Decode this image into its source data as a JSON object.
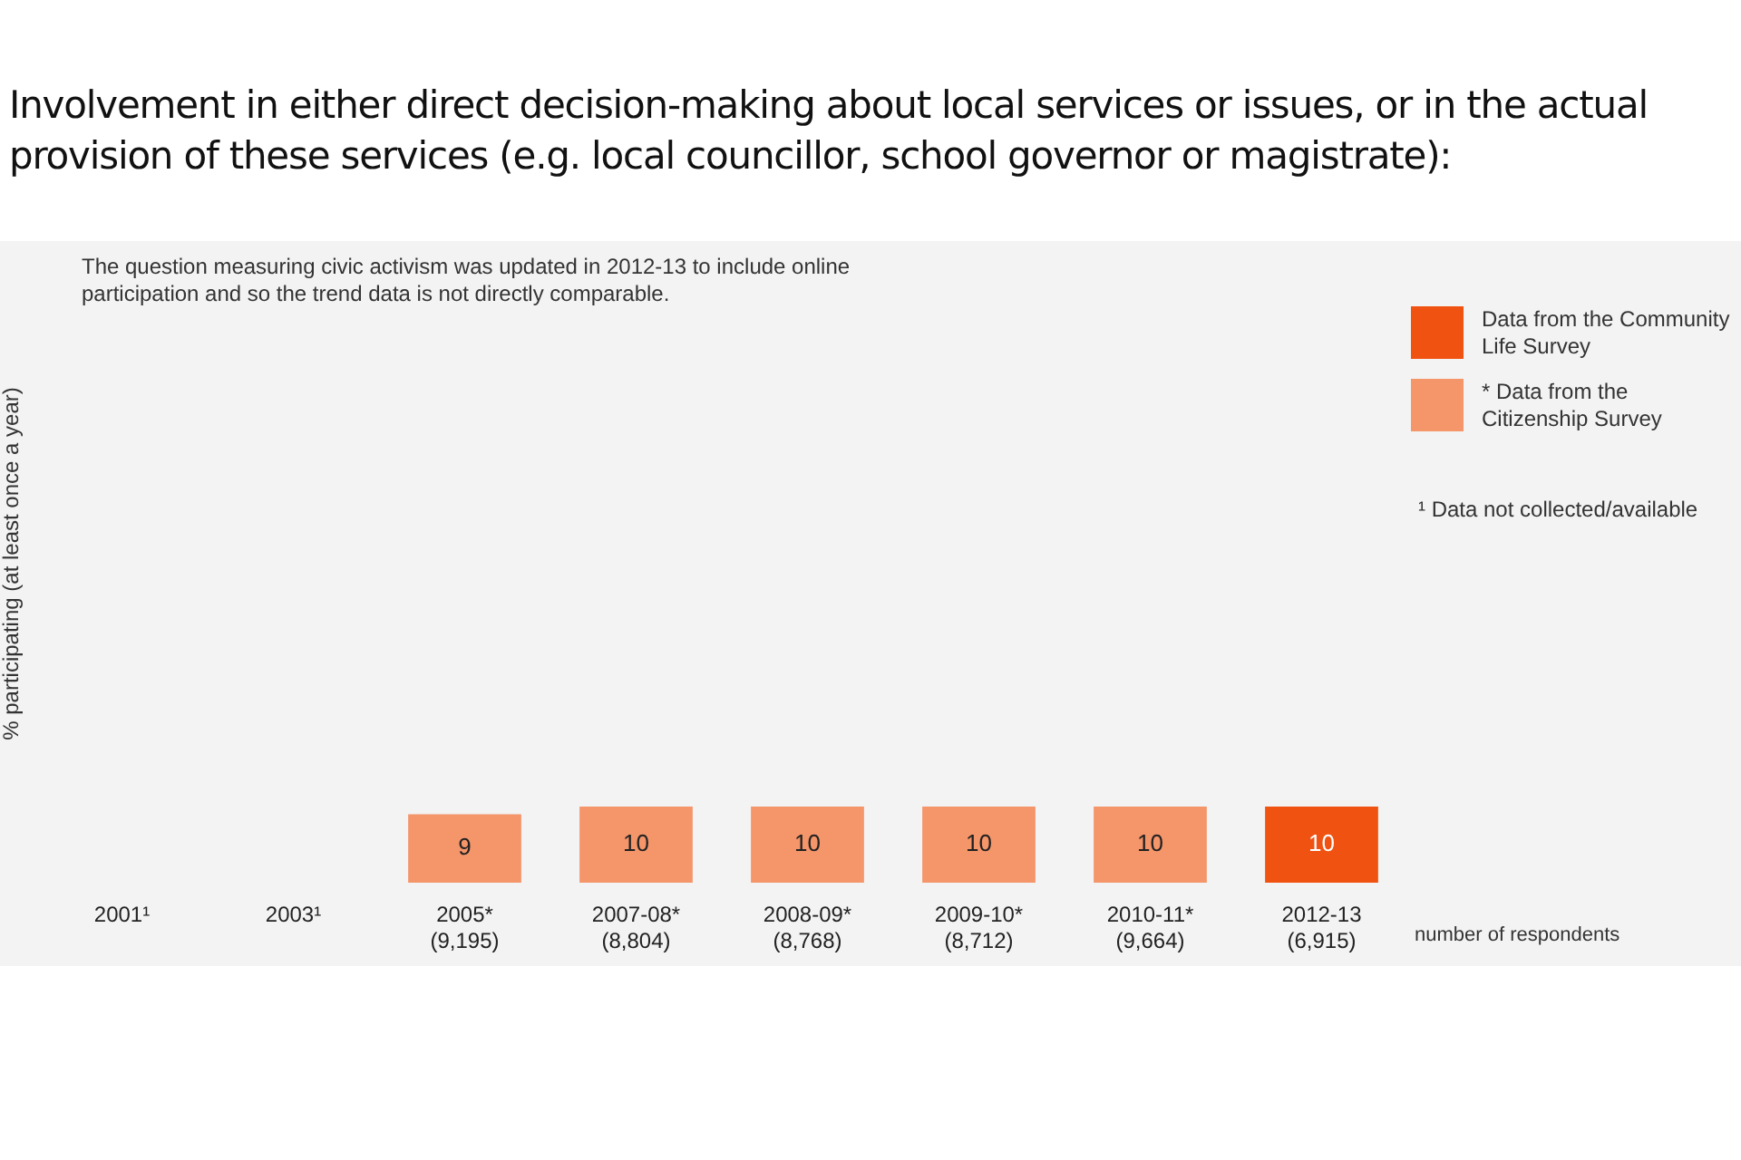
{
  "chart_data": {
    "type": "bar",
    "title": "Involvement in either direct decision-making about local services or issues, or in the actual provision of these services (e.g. local councillor, school governor or magistrate):",
    "ylabel": "% participating (at least once a year)",
    "categories": [
      "2001¹",
      "2003¹",
      "2005*\n(9,195)",
      "2007-08*\n(8,804)",
      "2008-09*\n(8,768)",
      "2009-10*\n(8,712)",
      "2010-11*\n(9,664)",
      "2012-13\n(6,915)"
    ],
    "series": [
      {
        "name": "Data from the Community Life Survey",
        "color": "#f05211",
        "values": [
          null,
          null,
          null,
          null,
          null,
          null,
          null,
          10
        ]
      },
      {
        "name": "* Data from the Citizenship Survey",
        "color": "#f4956a",
        "values": [
          null,
          null,
          9,
          10,
          10,
          10,
          10,
          null
        ]
      }
    ],
    "tick_labels": "x",
    "data_labels": true,
    "legend": "top right",
    "annotations": [
      "The question measuring civic activism was updated in 2012-13 to include online participation and so the trend data is not directly comparable.",
      "¹ Data not collected/available",
      "number of respondents"
    ]
  }
}
